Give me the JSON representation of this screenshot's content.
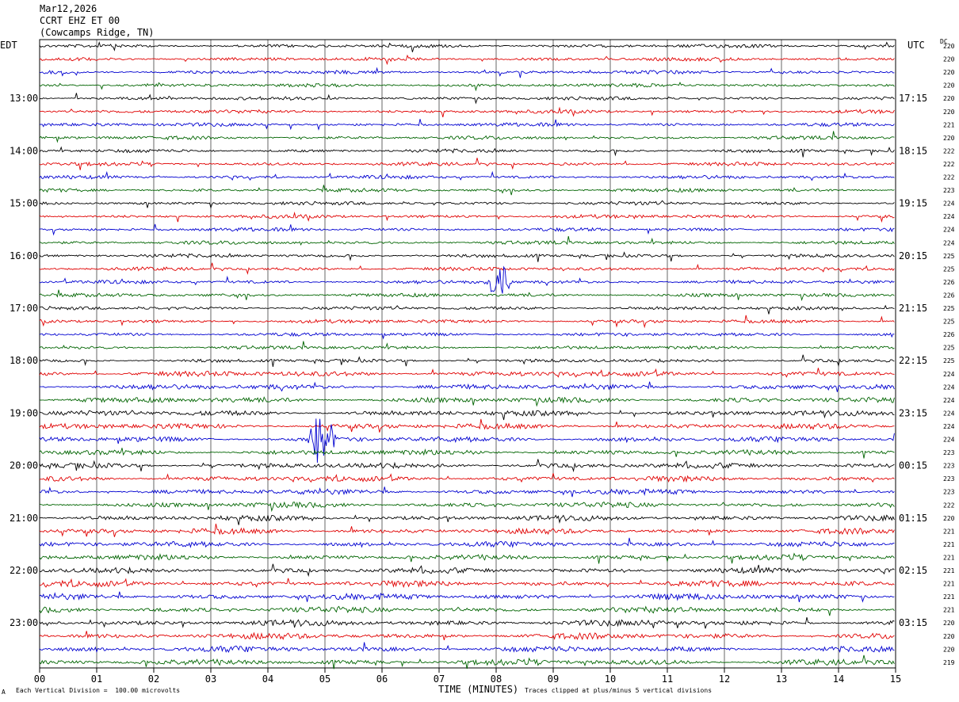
{
  "header": {
    "date": "Mar12,2026",
    "station": "CCRT EHZ ET 00",
    "location": "(Cowcamps Ridge, TN)"
  },
  "axes": {
    "left_title": "EDT",
    "right_title": "UTC",
    "dc_title": "DC",
    "xlabel": "TIME (MINUTES)"
  },
  "footer": {
    "mark": "A",
    "vertical_division": "Each Vertical Division =  100.00 microvolts",
    "clip_note": "Traces clipped at plus/minus 5 vertical divisions"
  },
  "colors": {
    "trace_cycle": [
      "#000000",
      "#e00000",
      "#0000d0",
      "#006400"
    ],
    "grid": "#000000"
  },
  "chart_data": {
    "type": "line",
    "description_kind": "helicorder",
    "x_ticks": [
      "00",
      "01",
      "02",
      "03",
      "04",
      "05",
      "06",
      "07",
      "08",
      "09",
      "10",
      "11",
      "12",
      "13",
      "14",
      "15"
    ],
    "xlim": [
      0,
      15
    ],
    "left_time_labels": [
      "13:00",
      "14:00",
      "15:00",
      "16:00",
      "17:00",
      "18:00",
      "19:00",
      "20:00",
      "21:00",
      "22:00",
      "23:00"
    ],
    "right_time_labels": [
      "17:15",
      "18:15",
      "19:15",
      "20:15",
      "21:15",
      "22:15",
      "23:15",
      "00:15",
      "01:15",
      "02:15",
      "03:15"
    ],
    "trace_count": 48,
    "dc_values": [
      220,
      220,
      220,
      220,
      220,
      220,
      221,
      220,
      222,
      222,
      222,
      223,
      224,
      224,
      224,
      224,
      225,
      225,
      226,
      226,
      225,
      225,
      226,
      225,
      225,
      224,
      224,
      224,
      224,
      224,
      224,
      223,
      223,
      223,
      223,
      222,
      220,
      221,
      221,
      221,
      221,
      221,
      221,
      221,
      220,
      220,
      220,
      219
    ],
    "events": [
      {
        "trace": 18,
        "minute": 8.05,
        "amplitude": 3
      },
      {
        "trace": 30,
        "minute": 4.95,
        "amplitude": 5
      }
    ]
  }
}
